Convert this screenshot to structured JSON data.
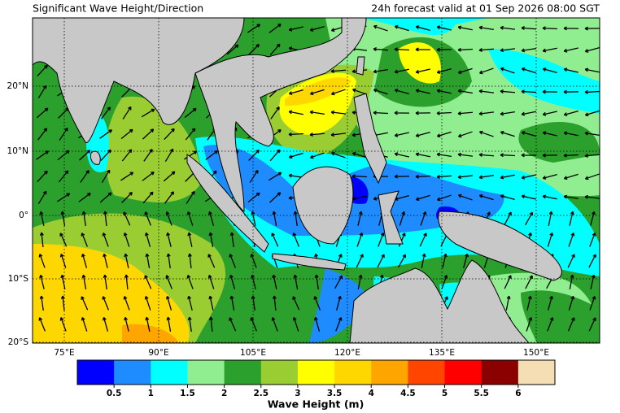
{
  "header": {
    "title": "Significant Wave Height/Direction",
    "valid": "24h forecast valid at 01 Sep 2026 08:00 SGT"
  },
  "map": {
    "lon_labels": [
      "75°E",
      "90°E",
      "105°E",
      "120°E",
      "135°E",
      "150°E"
    ],
    "lat_labels": [
      "20°N",
      "10°N",
      "0°",
      "10°S",
      "20°S"
    ]
  },
  "colorbar": {
    "colors": [
      "#0000ff",
      "#1e8cff",
      "#00ffff",
      "#90ee90",
      "#2ca02c",
      "#9acd32",
      "#ffff00",
      "#ffd700",
      "#ffa500",
      "#ff4500",
      "#ff0000",
      "#8b0000",
      "#f5deb3"
    ],
    "ticks": [
      0.5,
      1,
      1.5,
      2,
      2.5,
      3,
      3.5,
      4,
      4.5,
      5,
      5.5,
      6
    ],
    "label": "Wave Height (m)"
  }
}
